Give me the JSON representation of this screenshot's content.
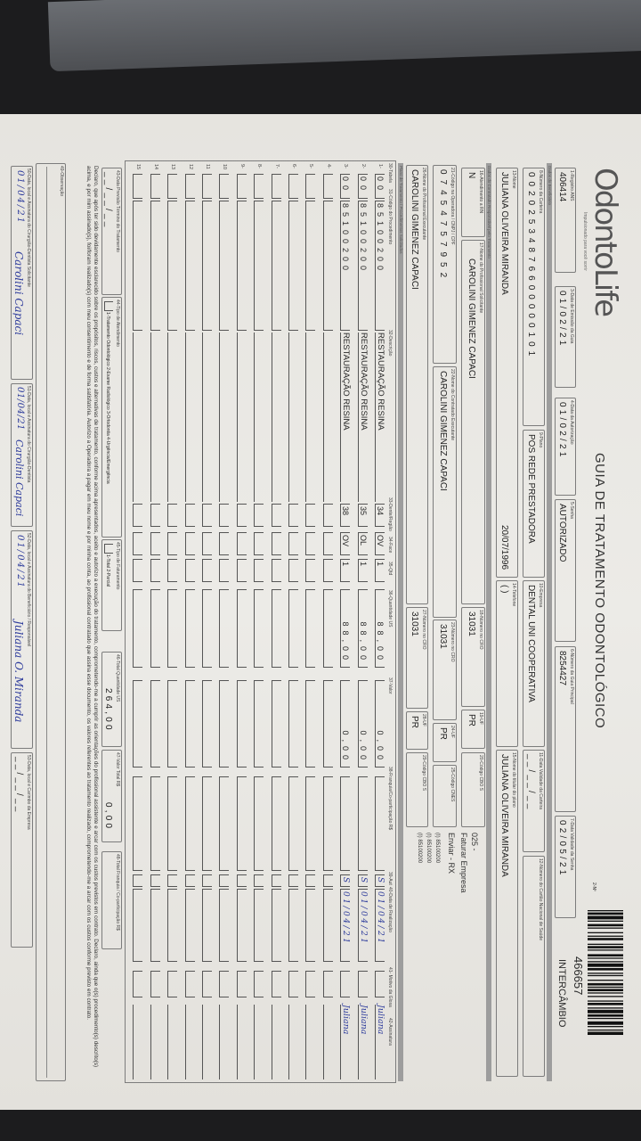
{
  "brand": {
    "logo": "OdontoLife",
    "tagline": "Impulsionado para você sorrir"
  },
  "header": {
    "title": "GUIA DE TRATAMENTO ODONTOLÓGICO",
    "guide_number_label": "2-Nº",
    "guide_number": "466657",
    "guide_type": "INTERCÂMBIO"
  },
  "guide": {
    "f1": {
      "label": "1-Registro ANS",
      "value": "406414"
    },
    "f3": {
      "label": "3-Data de Emissão da Guia",
      "value": "01/02/21"
    },
    "f4": {
      "label": "4-Data da Autorização",
      "value": "01/02/21"
    },
    "f5": {
      "label": "5-Senha",
      "value": "AUTORIZADO"
    },
    "f6": {
      "label": "6-Número da Guia Principal",
      "value": "8254427"
    },
    "f7": {
      "label": "7-Data Validade da Senha",
      "value": "02/05/21"
    }
  },
  "beneficiary": {
    "section": "Dados do Beneficiário",
    "f8": {
      "label": "8-Número da Carteira",
      "value": "00202534876600000101"
    },
    "f9": {
      "label": "9-Plano",
      "value": "POS REDE PRESTADORA"
    },
    "f10": {
      "label": "10-Empresa",
      "value": "DENTAL UNI  COOPERATIVA"
    },
    "f11": {
      "label": "11-Data Validade da Carteira",
      "value": "__/__/__"
    },
    "f12": {
      "label": "12-Número do Cartão Nacional de Saúde",
      "value": ""
    },
    "f13": {
      "label": "13-Nome",
      "value": "JULIANA OLIVEIRA MIRANDA",
      "birth": "20/07/1996"
    },
    "f14": {
      "label": "14-Telefone",
      "value": "(   )"
    },
    "f15": {
      "label": "15-Nome do titular do plano",
      "value": "JULIANA OLIVEIRA MIRANDA"
    }
  },
  "contractor": {
    "section": "Dados do Contratado Responsável pelo Tratamento",
    "f16": {
      "label": "16-Atendimento a RN",
      "value": "N"
    },
    "f17": {
      "label": "17-Nome do Profissional Solicitante",
      "value": "CAROLINI GIMENEZ CAPACI"
    },
    "f18": {
      "label": "18-Número no CRO",
      "value": "31031"
    },
    "f19": {
      "label": "19-UF",
      "value": "PR"
    },
    "f20": {
      "label": "20-Código CBO S",
      "value": ""
    },
    "f21": {
      "label": "21-Código na Operadora / CNPJ / CPF",
      "value": "07454757952"
    },
    "f22": {
      "label": "22-Nome do Contratado Executante",
      "value": "CAROLINI GIMENEZ CAPACI"
    },
    "f23": {
      "label": "23-Número no CRO",
      "value": "31031"
    },
    "f24": {
      "label": "24-UF",
      "value": "PR"
    },
    "f25": {
      "label": "25-Código CNES",
      "value": ""
    },
    "f26": {
      "label": "26-Nome do Profissional Executante",
      "value": "CAROLINI GIMENEZ CAPACI"
    },
    "f27": {
      "label": "27-Número no CRO",
      "value": "31031"
    },
    "f28": {
      "label": "28-UF",
      "value": "PR"
    },
    "f29": {
      "label": "29-Código CBO S",
      "value": ""
    },
    "notes": [
      "025 -",
      "Faturar Empresa",
      "Enviar - RX",
      "(I) 85100200",
      "(I) 85100200",
      "(I) 85100200"
    ]
  },
  "treatment": {
    "section": "Plano de Tratamento / Procedimentos Solicitados",
    "columns": [
      "30-Tabela",
      "31-Código do Procedimento",
      "32-Descrição",
      "33-Dente/Região",
      "34-Face",
      "35-Qtd",
      "36-Quantidade US",
      "37-Valor",
      "38-Franquia/Co-participação R$",
      "39-Aut",
      "40-Data de Realização",
      "41- Motivo da Glosa",
      "42-Assinatura"
    ],
    "rows": [
      {
        "n": "1-",
        "tabela": "00",
        "codigo": "85100200",
        "descricao": "RESTAURAÇÃO RESINA",
        "dente": "34",
        "face": "OV",
        "qtd": "1",
        "us": "88,00",
        "valor": "0,00",
        "franquia": "",
        "aut": "S",
        "data": "01/04/21",
        "motivo": "",
        "assinatura": "Juliana"
      },
      {
        "n": "2-",
        "tabela": "00",
        "codigo": "85100200",
        "descricao": "RESTAURAÇÃO RESINA",
        "dente": "35",
        "face": "OL",
        "qtd": "1",
        "us": "88,00",
        "valor": "0,00",
        "franquia": "",
        "aut": "S",
        "data": "01/04/21",
        "motivo": "",
        "assinatura": "Juliana"
      },
      {
        "n": "3-",
        "tabela": "00",
        "codigo": "85100200",
        "descricao": "RESTAURAÇÃO RESINA",
        "dente": "38",
        "face": "OV",
        "qtd": "1",
        "us": "88,00",
        "valor": "0,00",
        "franquia": "",
        "aut": "S",
        "data": "01/04/21",
        "motivo": "",
        "assinatura": "Juliana"
      },
      {
        "n": "4-"
      },
      {
        "n": "5-"
      },
      {
        "n": "6-"
      },
      {
        "n": "7-"
      },
      {
        "n": "8-"
      },
      {
        "n": "9-"
      },
      {
        "n": "10"
      },
      {
        "n": "11"
      },
      {
        "n": "12"
      },
      {
        "n": "13"
      },
      {
        "n": "14"
      },
      {
        "n": "15"
      }
    ]
  },
  "totals": {
    "f43": {
      "label": "43-Data Previsão Término do Tratamento",
      "value": "__/__/__"
    },
    "f44": {
      "label": "44-Tipo de Atendimento",
      "options": "1-Tratamento Odontológico 2-Exame Radiológico 3-Ortodontia 4-Urgência/Emergência"
    },
    "f45": {
      "label": "45-Tipo de Faturamento",
      "options": "1-Total 2-Parcial"
    },
    "f46": {
      "label": "46-Total Quantidade US",
      "value": "264,00"
    },
    "f47": {
      "label": "47-Valor Total R$",
      "value": "0,00"
    },
    "f48": {
      "label": "48-Total Franquia / Co-participação R$",
      "value": ""
    }
  },
  "declaration": "Declaro, que após ter sido devidamente esclarecido sobre os propósitos, riscos, custos e alternativas de tratamento, conforme acima apresentados, aceito e autorizo a execução do tratamento, comprometendo-me a cumprir as orientações do profissional assistente e arcar com os custos previstos em contrato. Declaro, ainda que o(s) procedimento(s) descrito(s) acima, e por mim assinado(s), foi/foram realizado(s) com meu consentimento e de forma satisfatória. Autorizo a Operadora a pagar em meu nome e por minha conta, ao profissional contratado que assina esse documento, os valores referentes ao tratamento realizado, comprometendo-me a arcar com os custos conforme previsto em contrato.",
  "observation": {
    "label": "49-Observação",
    "value": ""
  },
  "signatures": {
    "f50": {
      "label": "50-Data, local e Assinatura do Cirurgião-Dentista Solicitante",
      "date": "01/04/21",
      "signature": "Carolini Capaci"
    },
    "f51": {
      "label": "51-Data, local e Assinatura do Cirurgião-Dentista",
      "date": "01/04/21",
      "signature": "Carolini Capaci"
    },
    "f52": {
      "label": "52-Data, local e Assinatura do Beneficiário / Responsável",
      "date": "01/04/21",
      "signature": "Juliana O. Miranda"
    },
    "f53": {
      "label": "53-Data, local e Carimbo da Empresa",
      "date": "__/__/__"
    }
  }
}
